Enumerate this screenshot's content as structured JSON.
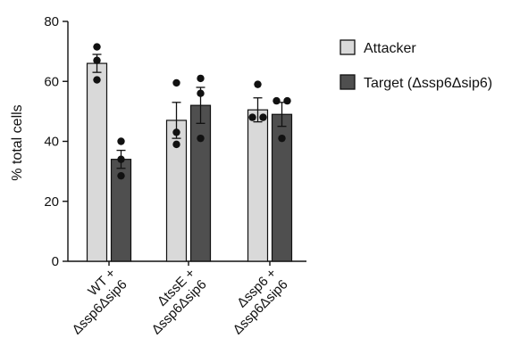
{
  "chart_data": {
    "type": "bar",
    "ylabel": "% total cells",
    "ylim": [
      0,
      80
    ],
    "yticks": [
      0,
      20,
      40,
      60,
      80
    ],
    "grid": false,
    "legend_position": "right",
    "categories": [
      {
        "line1": "WT +",
        "line2": "Δssp6Δsip6"
      },
      {
        "line1": "ΔtssE +",
        "line2": "Δssp6Δsip6"
      },
      {
        "line1": "Δssp6 +",
        "line2": "Δssp6Δsip6"
      }
    ],
    "series": [
      {
        "name": "Attacker",
        "color": "#d9d9d9",
        "values": [
          66,
          47,
          50.5
        ],
        "errors": [
          3,
          6,
          4
        ],
        "points": [
          [
            71.5,
            67,
            60.5
          ],
          [
            59.5,
            43,
            39
          ],
          [
            59,
            48,
            48
          ]
        ]
      },
      {
        "name": "Target (Δssp6Δsip6)",
        "color": "#4f4f4f",
        "values": [
          34,
          52,
          49
        ],
        "errors": [
          3,
          6,
          4
        ],
        "points": [
          [
            40,
            34,
            28.5
          ],
          [
            61,
            56,
            41
          ],
          [
            53.5,
            53.5,
            41
          ]
        ]
      }
    ]
  }
}
